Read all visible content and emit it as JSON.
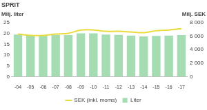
{
  "chart_data": {
    "type": "bar",
    "title": "SPRIT",
    "y_label": "Milj. liter",
    "y2_label": "Milj. SEK",
    "categories": [
      "-04",
      "-05",
      "-06",
      "-07",
      "-08",
      "-09",
      "-10",
      "-11",
      "-12",
      "-13",
      "-14",
      "-15",
      "-16",
      "-17"
    ],
    "series": [
      {
        "name": "Liter",
        "type": "bar",
        "color": "#a6dcb2",
        "values": [
          19.5,
          19,
          18.8,
          19.3,
          19.2,
          20,
          20,
          19.5,
          19.3,
          19,
          18.6,
          18.8,
          19,
          19.2
        ]
      },
      {
        "name": "SEK (inkl. moms)",
        "type": "line",
        "axis": "y2",
        "color": "#e9dc3a",
        "marker": "none",
        "values": [
          6300,
          6100,
          6100,
          6300,
          6400,
          6900,
          6900,
          6700,
          6700,
          6600,
          6500,
          6800,
          6900,
          7100
        ]
      }
    ],
    "ylim": [
      0,
      25
    ],
    "yticks": [
      0,
      5,
      10,
      15,
      20,
      25
    ],
    "y2lim": [
      0,
      8000
    ],
    "y2ticks": [
      0,
      {
        "value": 2000,
        "label": "2 000"
      },
      {
        "value": 4000,
        "label": "4 000"
      },
      {
        "value": 6000,
        "label": "6 000"
      },
      {
        "value": 8000,
        "label": "8 000"
      }
    ],
    "grid": false,
    "legend": "bottom"
  }
}
